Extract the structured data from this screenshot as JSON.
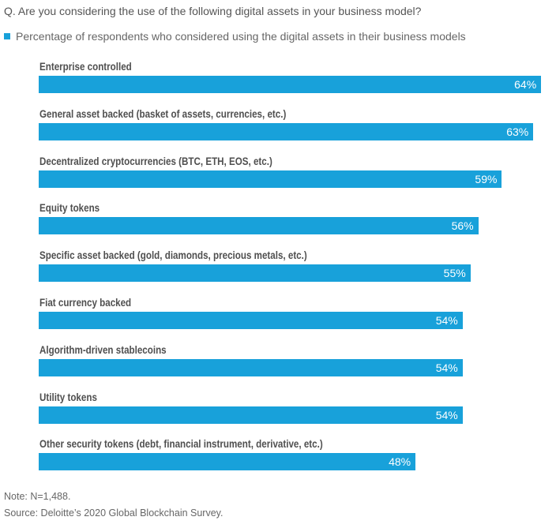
{
  "question": "Q.  Are you considering the use of the following digital assets in your business model?",
  "legend": {
    "label": "Percentage of respondents who considered using the digital assets in their business models",
    "color": "#18a1da"
  },
  "chart_data": {
    "type": "bar",
    "orientation": "horizontal",
    "title": "Q.  Are you considering the use of the following digital assets in your business model?",
    "xlabel": "",
    "ylabel": "",
    "xlim": [
      0,
      100
    ],
    "grid": false,
    "legend_position": "top-left",
    "series": [
      {
        "name": "Percentage of respondents who considered using the digital assets in their business models",
        "color": "#18a1da",
        "values": [
          64,
          63,
          59,
          56,
          55,
          54,
          54,
          54,
          48
        ]
      }
    ],
    "categories": [
      "Enterprise controlled",
      "General asset backed (basket of assets, currencies, etc.)",
      "Decentralized cryptocurrencies (BTC, ETH, EOS, etc.)",
      "Equity tokens",
      "Specific asset backed (gold, diamonds, precious metals, etc.)",
      "Fiat currency backed",
      "Algorithm-driven stablecoins",
      "Utility tokens",
      "Other security tokens (debt, financial instrument, derivative, etc.)"
    ],
    "data_labels": [
      "64%",
      "63%",
      "59%",
      "56%",
      "55%",
      "54%",
      "54%",
      "54%",
      "48%"
    ]
  },
  "notes": {
    "note": "Note: N=1,488.",
    "source": "Source: Deloitte’s 2020 Global Blockchain Survey."
  }
}
